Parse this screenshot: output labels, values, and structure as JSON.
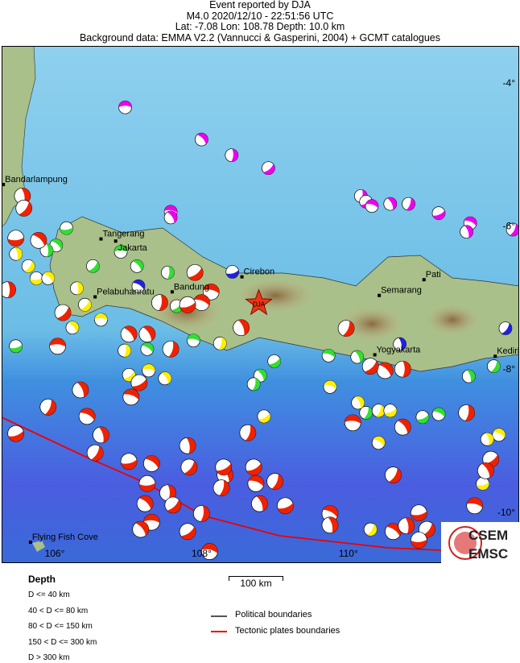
{
  "header": {
    "line1": "Event reported by DJA",
    "line2": "M4.0  2020/12/10 - 22:51:56 UTC",
    "line3": "Lat: -7.08    Lon: 108.78     Depth:  10.0 km",
    "line4": "Background data: EMMA V2.2 (Vannucci & Gasperini, 2004) + GCMT catalogues"
  },
  "event": {
    "lon": 108.78,
    "lat": -7.08,
    "agency": "DJA",
    "color": "#ee3311"
  },
  "cities": [
    {
      "name": "Bandarlampung",
      "lon": 105.3,
      "lat": -5.42
    },
    {
      "name": "Tangerang",
      "lon": 106.63,
      "lat": -6.18
    },
    {
      "name": "Jakarta",
      "lon": 106.83,
      "lat": -6.21
    },
    {
      "name": "Cirebon",
      "lon": 108.55,
      "lat": -6.71
    },
    {
      "name": "Pelabuhanratu",
      "lon": 106.55,
      "lat": -6.99
    },
    {
      "name": "Bandung",
      "lon": 107.6,
      "lat": -6.92
    },
    {
      "name": "Semarang",
      "lon": 110.42,
      "lat": -6.97
    },
    {
      "name": "Pati",
      "lon": 111.03,
      "lat": -6.75
    },
    {
      "name": "Yogyakarta",
      "lon": 110.36,
      "lat": -7.8
    },
    {
      "name": "Kediri",
      "lon": 112.0,
      "lat": -7.82
    },
    {
      "name": "Flying Fish Cove",
      "lon": 105.67,
      "lat": -10.42
    }
  ],
  "axes": {
    "lon_ticks": [
      "106°",
      "108°",
      "110°"
    ],
    "lat_ticks": [
      "-4°",
      "-6°",
      "-8°",
      "-10°"
    ]
  },
  "depth_colors": [
    "#ee2200",
    "#ffee00",
    "#33dd33",
    "#2222dd",
    "#ee00ee"
  ],
  "events": [
    [
      106.96,
      -4.34,
      4
    ],
    [
      108.0,
      -4.79,
      4
    ],
    [
      108.41,
      -5.01,
      4
    ],
    [
      108.91,
      -5.19,
      4
    ],
    [
      107.58,
      -5.8,
      4
    ],
    [
      107.58,
      -5.88,
      4
    ],
    [
      110.17,
      -5.58,
      4
    ],
    [
      110.24,
      -5.66,
      4
    ],
    [
      110.32,
      -5.72,
      4
    ],
    [
      110.57,
      -5.69,
      4
    ],
    [
      110.82,
      -5.69,
      4
    ],
    [
      111.23,
      -5.82,
      4
    ],
    [
      111.66,
      -5.96,
      4
    ],
    [
      111.61,
      -6.08,
      4
    ],
    [
      112.24,
      -6.05,
      4
    ],
    [
      108.42,
      -6.64,
      3
    ],
    [
      107.14,
      -6.84,
      3
    ],
    [
      110.7,
      -7.65,
      3
    ],
    [
      112.14,
      -7.43,
      3
    ],
    [
      106.16,
      -6.03,
      2
    ],
    [
      106.02,
      -6.27,
      2
    ],
    [
      105.89,
      -6.34,
      2
    ],
    [
      106.52,
      -6.56,
      2
    ],
    [
      106.9,
      -6.36,
      2
    ],
    [
      107.12,
      -6.56,
      2
    ],
    [
      107.54,
      -6.65,
      2
    ],
    [
      107.66,
      -7.12,
      2
    ],
    [
      107.89,
      -7.6,
      2
    ],
    [
      108.8,
      -8.09,
      2
    ],
    [
      108.71,
      -8.21,
      2
    ],
    [
      108.99,
      -7.89,
      2
    ],
    [
      109.73,
      -7.81,
      2
    ],
    [
      110.12,
      -7.83,
      2
    ],
    [
      110.24,
      -8.61,
      2
    ],
    [
      111.01,
      -8.67,
      2
    ],
    [
      111.23,
      -8.63,
      2
    ],
    [
      111.64,
      -8.1,
      2
    ],
    [
      111.98,
      -7.96,
      2
    ],
    [
      105.47,
      -7.68,
      2
    ],
    [
      107.26,
      -7.72,
      2
    ],
    [
      105.47,
      -6.39,
      1
    ],
    [
      105.64,
      -6.56,
      1
    ],
    [
      105.75,
      -6.73,
      1
    ],
    [
      105.91,
      -6.73,
      1
    ],
    [
      106.3,
      -6.87,
      1
    ],
    [
      106.41,
      -7.1,
      1
    ],
    [
      106.63,
      -7.31,
      1
    ],
    [
      106.24,
      -7.42,
      1
    ],
    [
      106.95,
      -7.74,
      1
    ],
    [
      107.01,
      -8.08,
      1
    ],
    [
      107.28,
      -8.02,
      1
    ],
    [
      107.5,
      -8.13,
      1
    ],
    [
      108.25,
      -7.64,
      1
    ],
    [
      108.85,
      -8.66,
      1
    ],
    [
      109.75,
      -8.25,
      1
    ],
    [
      110.13,
      -8.47,
      1
    ],
    [
      110.41,
      -8.58,
      1
    ],
    [
      110.57,
      -8.58,
      1
    ],
    [
      112.05,
      -8.92,
      1
    ],
    [
      111.89,
      -8.98,
      1
    ],
    [
      110.3,
      -10.24,
      1
    ],
    [
      111.83,
      -9.6,
      1
    ],
    [
      110.41,
      -9.03,
      1
    ],
    [
      105.56,
      -5.58,
      0
    ],
    [
      105.58,
      -5.75,
      0
    ],
    [
      105.47,
      -6.17,
      0
    ],
    [
      105.78,
      -6.2,
      0
    ],
    [
      105.36,
      -6.89,
      0
    ],
    [
      106.11,
      -7.21,
      0
    ],
    [
      106.04,
      -7.68,
      0
    ],
    [
      107.01,
      -7.51,
      0
    ],
    [
      107.43,
      -7.07,
      0
    ],
    [
      107.91,
      -6.65,
      0
    ],
    [
      108.13,
      -6.92,
      0
    ],
    [
      107.26,
      -7.51,
      0
    ],
    [
      107.58,
      -7.72,
      0
    ],
    [
      107.15,
      -8.19,
      0
    ],
    [
      107.04,
      -8.39,
      0
    ],
    [
      106.35,
      -8.29,
      0
    ],
    [
      105.91,
      -8.53,
      0
    ],
    [
      105.47,
      -8.9,
      0
    ],
    [
      106.44,
      -8.66,
      0
    ],
    [
      106.63,
      -8.92,
      0
    ],
    [
      106.55,
      -9.17,
      0
    ],
    [
      107.01,
      -9.29,
      0
    ],
    [
      107.32,
      -9.32,
      0
    ],
    [
      107.81,
      -9.07,
      0
    ],
    [
      107.83,
      -9.37,
      0
    ],
    [
      107.26,
      -9.6,
      0
    ],
    [
      107.23,
      -9.88,
      0
    ],
    [
      107.54,
      -9.73,
      0
    ],
    [
      107.61,
      -9.9,
      0
    ],
    [
      107.32,
      -10.14,
      0
    ],
    [
      107.17,
      -10.24,
      0
    ],
    [
      108.0,
      -10.02,
      0
    ],
    [
      107.81,
      -10.27,
      0
    ],
    [
      108.11,
      -10.55,
      0
    ],
    [
      108.32,
      -9.48,
      0
    ],
    [
      108.27,
      -9.66,
      0
    ],
    [
      108.71,
      -9.37,
      0
    ],
    [
      108.74,
      -9.6,
      0
    ],
    [
      108.79,
      -9.88,
      0
    ],
    [
      109.0,
      -9.57,
      0
    ],
    [
      109.14,
      -9.91,
      0
    ],
    [
      109.75,
      -10.02,
      0
    ],
    [
      109.75,
      -10.18,
      0
    ],
    [
      110.61,
      -9.48,
      0
    ],
    [
      110.96,
      -10.01,
      0
    ],
    [
      110.61,
      -10.27,
      0
    ],
    [
      110.79,
      -10.19,
      0
    ],
    [
      111.07,
      -10.24,
      0
    ],
    [
      110.96,
      -10.39,
      0
    ],
    [
      110.5,
      -8.02,
      0
    ],
    [
      110.74,
      -8.0,
      0
    ],
    [
      110.3,
      -7.96,
      0
    ],
    [
      110.06,
      -8.75,
      0
    ],
    [
      110.74,
      -8.81,
      0
    ],
    [
      111.61,
      -8.61,
      0
    ],
    [
      111.94,
      -9.26,
      0
    ],
    [
      111.72,
      -9.91,
      0
    ],
    [
      111.87,
      -9.42,
      0
    ],
    [
      108.63,
      -8.89,
      0
    ],
    [
      108.3,
      -9.37,
      0
    ],
    [
      108.0,
      -7.07,
      0
    ],
    [
      108.54,
      -7.42,
      0
    ],
    [
      109.97,
      -7.43,
      0
    ],
    [
      107.81,
      -7.1,
      0
    ]
  ],
  "legend": {
    "depth_title": "Depth",
    "depth_classes": [
      "D <= 40 km",
      "40 < D <= 80 km",
      "80 < D <= 150 km",
      "150 < D <= 300 km",
      "D > 300 km"
    ],
    "scale_label": "100 km",
    "political": "Political boundaries",
    "tectonic": "Tectonic plates boundaries",
    "political_color": "#555555",
    "tectonic_color": "#ee0000"
  },
  "logo": {
    "top": "CSEM",
    "bottom": "EMSC"
  }
}
